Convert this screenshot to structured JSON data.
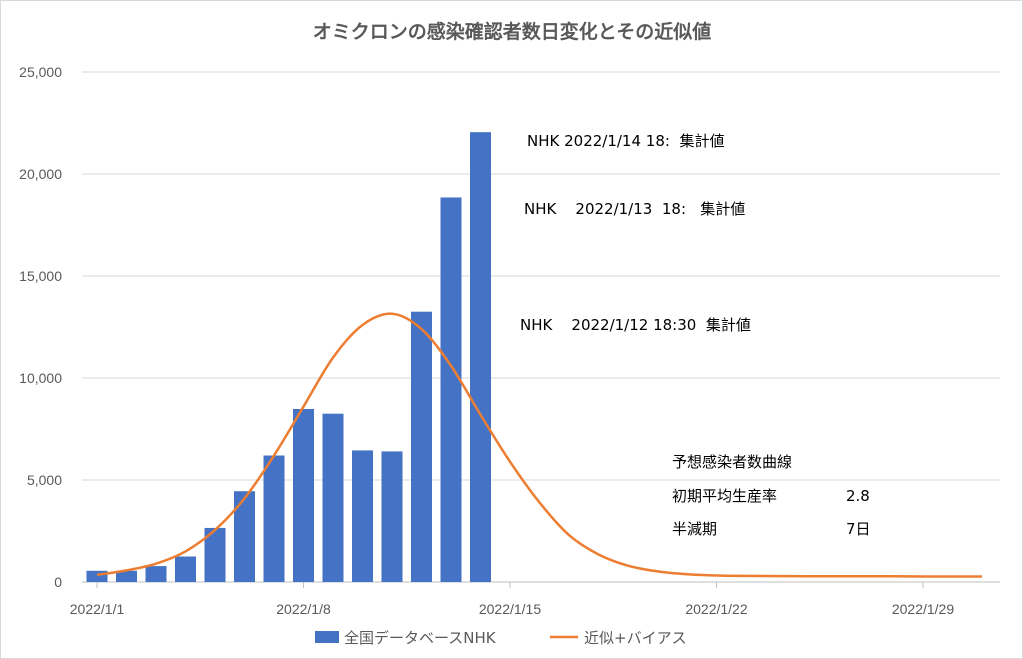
{
  "chart_data": {
    "type": "bar",
    "title": "オミクロンの感染確認者数日変化とその近似値",
    "ylim": [
      0,
      25000
    ],
    "yticks": [
      "0",
      "5,000",
      "10,000",
      "15,000",
      "20,000",
      "25,000"
    ],
    "xticks": [
      "2022/1/1",
      "2022/1/8",
      "2022/1/15",
      "2022/1/22",
      "2022/1/29"
    ],
    "legend": "bottom",
    "grid": "horizontal",
    "series": [
      {
        "name": "全国データベースNHK",
        "kind": "bar",
        "color": "#4472C4",
        "x": [
          "2022/1/1",
          "2022/1/2",
          "2022/1/3",
          "2022/1/4",
          "2022/1/5",
          "2022/1/6",
          "2022/1/7",
          "2022/1/8",
          "2022/1/9",
          "2022/1/10",
          "2022/1/11",
          "2022/1/12",
          "2022/1/13",
          "2022/1/14"
        ],
        "values": [
          550,
          550,
          780,
          1250,
          2650,
          4450,
          6200,
          8480,
          8250,
          6450,
          6400,
          13250,
          18850,
          22050
        ]
      },
      {
        "name": "近似+バイアス",
        "kind": "line",
        "color": "#ED7D31",
        "x": [
          "2022/1/1",
          "2022/1/2",
          "2022/1/3",
          "2022/1/4",
          "2022/1/5",
          "2022/1/6",
          "2022/1/7",
          "2022/1/8",
          "2022/1/9",
          "2022/1/10",
          "2022/1/11",
          "2022/1/12",
          "2022/1/13",
          "2022/1/14",
          "2022/1/15",
          "2022/1/16",
          "2022/1/17",
          "2022/1/18",
          "2022/1/19",
          "2022/1/20",
          "2022/1/21",
          "2022/1/22",
          "2022/1/23",
          "2022/1/24",
          "2022/1/25",
          "2022/1/26",
          "2022/1/27",
          "2022/1/28",
          "2022/1/29",
          "2022/1/30",
          "2022/1/31"
        ],
        "values": [
          350,
          570,
          900,
          1500,
          2550,
          4100,
          6200,
          8600,
          11000,
          12600,
          13150,
          12400,
          10600,
          8200,
          5900,
          3900,
          2300,
          1350,
          800,
          520,
          380,
          320,
          300,
          290,
          280,
          280,
          280,
          280,
          270,
          270,
          270
        ]
      }
    ],
    "annotations": [
      "NHK 2022/1/14 18:  集計値",
      "NHK    2022/1/13  18:   集計値",
      "NHK    2022/1/12 18:30  集計値"
    ],
    "parameters": {
      "heading": "予想感染者数曲線",
      "rows": [
        {
          "label": "初期平均生産率",
          "value": "2.8"
        },
        {
          "label": "半減期",
          "value": "7日"
        }
      ]
    }
  }
}
